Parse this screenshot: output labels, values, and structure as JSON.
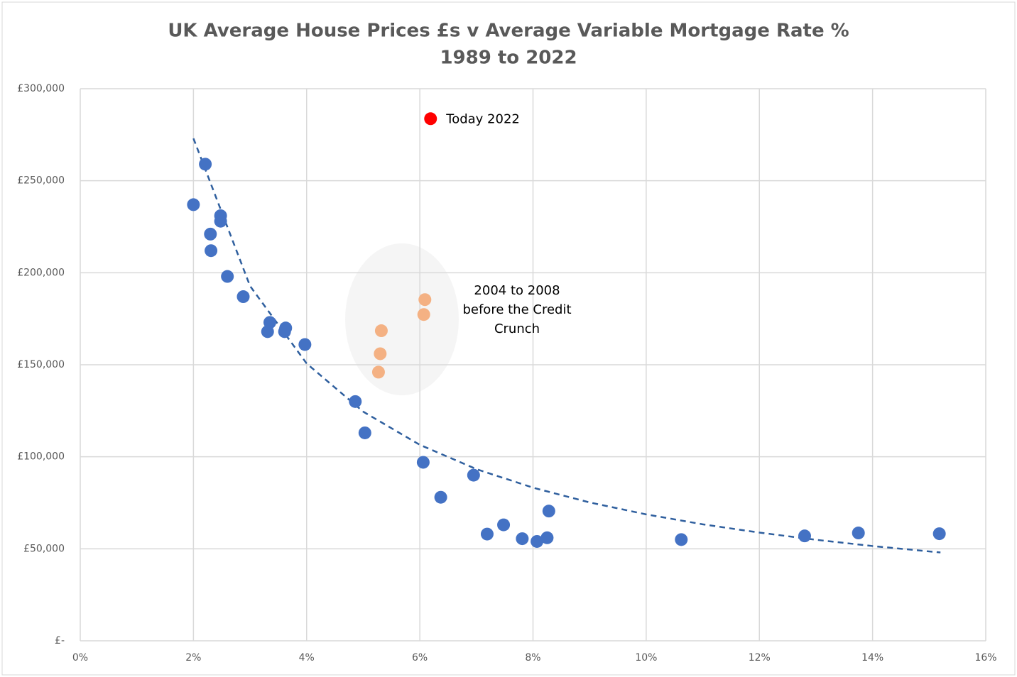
{
  "chart_data": {
    "type": "scatter",
    "title": "UK Average House Prices £s v Average Variable Mortgage Rate %",
    "subtitle": "1989 to 2022",
    "xlim": [
      0,
      16
    ],
    "xticks": [
      {
        "value": 0,
        "label": "0%"
      },
      {
        "value": 2,
        "label": "2%"
      },
      {
        "value": 4,
        "label": "4%"
      },
      {
        "value": 6,
        "label": "6%"
      },
      {
        "value": 8,
        "label": "8%"
      },
      {
        "value": 10,
        "label": "10%"
      },
      {
        "value": 12,
        "label": "12%"
      },
      {
        "value": 14,
        "label": "14%"
      },
      {
        "value": 16,
        "label": "16%"
      }
    ],
    "ylim": [
      0,
      300000
    ],
    "yticks": [
      {
        "value": 0,
        "label": "£-"
      },
      {
        "value": 50000,
        "label": "£50,000"
      },
      {
        "value": 100000,
        "label": "£100,000"
      },
      {
        "value": 150000,
        "label": "£150,000"
      },
      {
        "value": 200000,
        "label": "£200,000"
      },
      {
        "value": 250000,
        "label": "£250,000"
      },
      {
        "value": 300000,
        "label": "£300,000"
      }
    ],
    "grid": true,
    "series": [
      {
        "color": "#4472c4",
        "x": [
          2.0,
          2.21,
          2.3,
          2.31,
          2.48,
          2.48,
          2.6,
          2.88,
          3.35,
          3.31,
          3.63,
          3.61,
          3.97,
          4.86,
          5.03,
          6.06,
          6.37,
          6.95,
          7.19,
          7.48,
          7.81,
          8.07,
          8.25,
          8.28,
          10.62,
          12.8,
          13.75,
          15.18
        ],
        "values": [
          237000,
          259000,
          221000,
          212000,
          231000,
          228000,
          198000,
          187000,
          173000,
          168000,
          170000,
          168000,
          161000,
          130000,
          113000,
          97000,
          78000,
          90000,
          58000,
          63000,
          55500,
          54000,
          56000,
          70500,
          55000,
          57000,
          58600,
          58200
        ]
      },
      {
        "color": "#f4b183",
        "x": [
          5.32,
          5.3,
          5.27,
          6.09,
          6.07
        ],
        "values": [
          168500,
          156000,
          146000,
          185400,
          177300
        ]
      },
      {
        "color": "#ff0000",
        "x": [
          6.19
        ],
        "values": [
          283700
        ]
      }
    ],
    "trendline": {
      "color": "#2f5f9e",
      "x": [
        2,
        3,
        4,
        5,
        6,
        7,
        8,
        9,
        10,
        11,
        12,
        13,
        14,
        15.2
      ],
      "values": [
        273000,
        192800,
        150700,
        124500,
        106500,
        93300,
        83200,
        75200,
        68700,
        63300,
        58800,
        54900,
        51500,
        48000
      ]
    },
    "annotation": [
      "2004 to 2008",
      "before the Credit",
      "Crunch"
    ],
    "point_label": "Today 2022"
  }
}
